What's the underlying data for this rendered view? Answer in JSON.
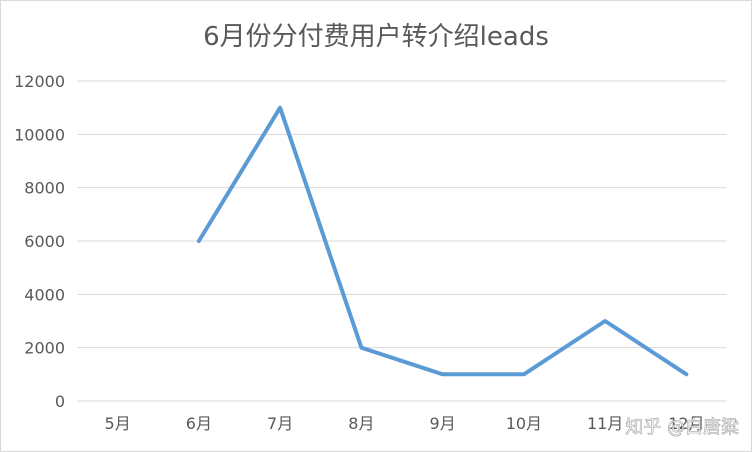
{
  "chart_data": {
    "type": "line",
    "title": "6月份分付费用户转介绍leads",
    "xlabel": "",
    "ylabel": "",
    "categories": [
      "5月",
      "6月",
      "7月",
      "8月",
      "9月",
      "10月",
      "11月",
      "12月"
    ],
    "series": [
      {
        "values": [
          null,
          6000,
          11000,
          2000,
          1000,
          1000,
          3000,
          1000
        ],
        "color": "#5b9bd5"
      }
    ],
    "ylim": [
      0,
      12000
    ],
    "yticks": [
      0,
      2000,
      4000,
      6000,
      8000,
      10000,
      12000
    ],
    "grid": true,
    "legend": "none"
  },
  "watermark": {
    "text": "知乎 @白唐粱"
  }
}
